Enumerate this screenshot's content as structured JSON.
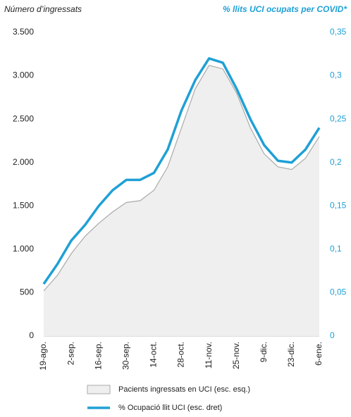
{
  "chart_data": {
    "type": "combo",
    "left_title": "Número d’ingressats",
    "right_title": "% llits UCI ocupats per COVID*",
    "categories": [
      "19-ago.",
      null,
      "2-sep.",
      null,
      "16-sep.",
      null,
      "30-sep.",
      null,
      "14-oct.",
      null,
      "28-oct.",
      null,
      "11-nov.",
      null,
      "25-nov.",
      null,
      "9-dic.",
      null,
      "23-dic.",
      null,
      "6-ene."
    ],
    "series": [
      {
        "name": "Pacients ingressats en UCI (esc. esq.)",
        "type": "area",
        "color": "#efefef",
        "stroke": "#aaaaaa",
        "axis": "y",
        "values": [
          520,
          700,
          950,
          1150,
          1300,
          1430,
          1540,
          1560,
          1680,
          1950,
          2400,
          2850,
          3120,
          3080,
          2800,
          2400,
          2100,
          1950,
          1920,
          2050,
          2300
        ]
      },
      {
        "name": "% Ocupació llit UCI (esc. dret)",
        "type": "line",
        "color": "#1fa0d6",
        "axis": "y2",
        "values": [
          0.06,
          0.083,
          0.11,
          0.128,
          0.15,
          0.168,
          0.18,
          0.18,
          0.188,
          0.215,
          0.26,
          0.295,
          0.32,
          0.315,
          0.285,
          0.25,
          0.22,
          0.202,
          0.2,
          0.215,
          0.24
        ]
      }
    ],
    "ylim": [
      0,
      3500
    ],
    "yticks": [
      0,
      500,
      {
        "value": 1000,
        "label": "1.000"
      },
      {
        "value": 1500,
        "label": "1.500"
      },
      {
        "value": 2000,
        "label": "2.000"
      },
      {
        "value": 2500,
        "label": "2.500"
      },
      {
        "value": 3000,
        "label": "3.000"
      },
      {
        "value": 3500,
        "label": "3.500"
      }
    ],
    "y2lim": [
      0,
      0.35
    ],
    "y2ticks": [
      0,
      {
        "value": 0.05,
        "label": "0,05"
      },
      {
        "value": 0.1,
        "label": "0,1"
      },
      {
        "value": 0.15,
        "label": "0,15"
      },
      {
        "value": 0.2,
        "label": "0,2"
      },
      {
        "value": 0.25,
        "label": "0,25"
      },
      {
        "value": 0.3,
        "label": "0,3"
      },
      {
        "value": 0.35,
        "label": "0,35"
      }
    ],
    "y2_color": "#1fa0d6"
  }
}
